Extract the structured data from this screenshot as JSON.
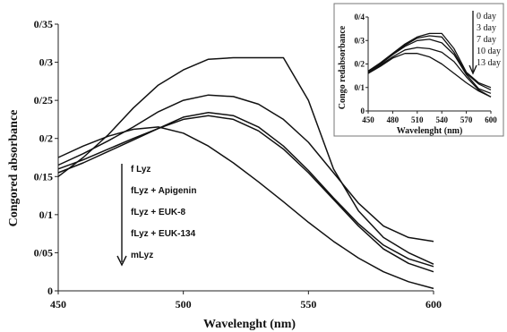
{
  "chart_data": [
    {
      "type": "line",
      "title": "",
      "xlabel": "Wavelenght (nm)",
      "ylabel": "Congored absorbance",
      "xlim": [
        450,
        600
      ],
      "ylim": [
        0,
        0.35
      ],
      "x_ticks": [
        "450",
        "500",
        "550",
        "600"
      ],
      "y_ticks": [
        "0",
        "0/05",
        "0/1",
        "0/15",
        "0/2",
        "0/25",
        "0/3",
        "0/35"
      ],
      "legend": [
        "f Lyz",
        "fLyz + Apigenin",
        "fLyz + EUK-8",
        "fLyz + EUK-134",
        "mLyz"
      ],
      "legend_position": "left-center",
      "series": [
        {
          "x": [
            450,
            460,
            470,
            480,
            490,
            500,
            510,
            520,
            530,
            540,
            550,
            560,
            570,
            580,
            590,
            600
          ],
          "y": [
            0.15,
            0.175,
            0.205,
            0.24,
            0.27,
            0.29,
            0.304,
            0.306,
            0.306,
            0.306,
            0.25,
            0.16,
            0.105,
            0.07,
            0.05,
            0.035
          ]
        },
        {
          "x": [
            450,
            460,
            470,
            480,
            490,
            500,
            510,
            520,
            530,
            540,
            550,
            560,
            570,
            580,
            590,
            600
          ],
          "y": [
            0.165,
            0.18,
            0.197,
            0.215,
            0.235,
            0.25,
            0.257,
            0.255,
            0.245,
            0.225,
            0.195,
            0.155,
            0.115,
            0.085,
            0.07,
            0.065
          ]
        },
        {
          "x": [
            450,
            460,
            470,
            480,
            490,
            500,
            510,
            520,
            530,
            540,
            550,
            560,
            570,
            580,
            590,
            600
          ],
          "y": [
            0.155,
            0.168,
            0.183,
            0.198,
            0.213,
            0.228,
            0.234,
            0.23,
            0.215,
            0.19,
            0.158,
            0.122,
            0.088,
            0.06,
            0.042,
            0.032
          ]
        },
        {
          "x": [
            450,
            460,
            470,
            480,
            490,
            500,
            510,
            520,
            530,
            540,
            550,
            560,
            570,
            580,
            590,
            600
          ],
          "y": [
            0.16,
            0.172,
            0.186,
            0.2,
            0.213,
            0.225,
            0.23,
            0.225,
            0.21,
            0.186,
            0.155,
            0.12,
            0.085,
            0.055,
            0.036,
            0.025
          ]
        },
        {
          "x": [
            450,
            460,
            470,
            480,
            490,
            500,
            510,
            520,
            530,
            540,
            550,
            560,
            570,
            580,
            590,
            600
          ],
          "y": [
            0.175,
            0.19,
            0.203,
            0.212,
            0.215,
            0.207,
            0.19,
            0.168,
            0.143,
            0.117,
            0.09,
            0.065,
            0.043,
            0.025,
            0.012,
            0.003
          ]
        }
      ]
    },
    {
      "type": "line",
      "title": "",
      "xlabel": "Wavelenght (nm)",
      "ylabel": "Congo redabsorbance",
      "xlim": [
        450,
        600
      ],
      "ylim": [
        0,
        0.4
      ],
      "x_ticks": [
        "450",
        "480",
        "510",
        "540",
        "570",
        "600"
      ],
      "y_ticks": [
        "0",
        "0/1",
        "0/2",
        "0/3",
        "0/4"
      ],
      "legend": [
        "0 day",
        "3 day",
        "7 day",
        "10 day",
        "13 day"
      ],
      "legend_position": "right",
      "series": [
        {
          "x": [
            450,
            465,
            480,
            495,
            510,
            525,
            540,
            555,
            570,
            585,
            600
          ],
          "y": [
            0.16,
            0.19,
            0.225,
            0.245,
            0.245,
            0.23,
            0.2,
            0.16,
            0.12,
            0.085,
            0.06
          ]
        },
        {
          "x": [
            450,
            465,
            480,
            495,
            510,
            525,
            540,
            555,
            570,
            585,
            600
          ],
          "y": [
            0.16,
            0.195,
            0.23,
            0.26,
            0.27,
            0.265,
            0.25,
            0.21,
            0.145,
            0.09,
            0.06
          ]
        },
        {
          "x": [
            450,
            465,
            480,
            495,
            510,
            525,
            540,
            555,
            570,
            585,
            600
          ],
          "y": [
            0.165,
            0.2,
            0.24,
            0.275,
            0.3,
            0.305,
            0.29,
            0.24,
            0.155,
            0.095,
            0.075
          ]
        },
        {
          "x": [
            450,
            465,
            480,
            495,
            510,
            525,
            540,
            555,
            570,
            585,
            600
          ],
          "y": [
            0.17,
            0.2,
            0.24,
            0.28,
            0.31,
            0.32,
            0.315,
            0.25,
            0.16,
            0.115,
            0.09
          ]
        },
        {
          "x": [
            450,
            465,
            480,
            495,
            510,
            525,
            540,
            555,
            570,
            585,
            600
          ],
          "y": [
            0.17,
            0.205,
            0.245,
            0.285,
            0.315,
            0.33,
            0.33,
            0.265,
            0.165,
            0.12,
            0.1
          ]
        }
      ]
    }
  ]
}
